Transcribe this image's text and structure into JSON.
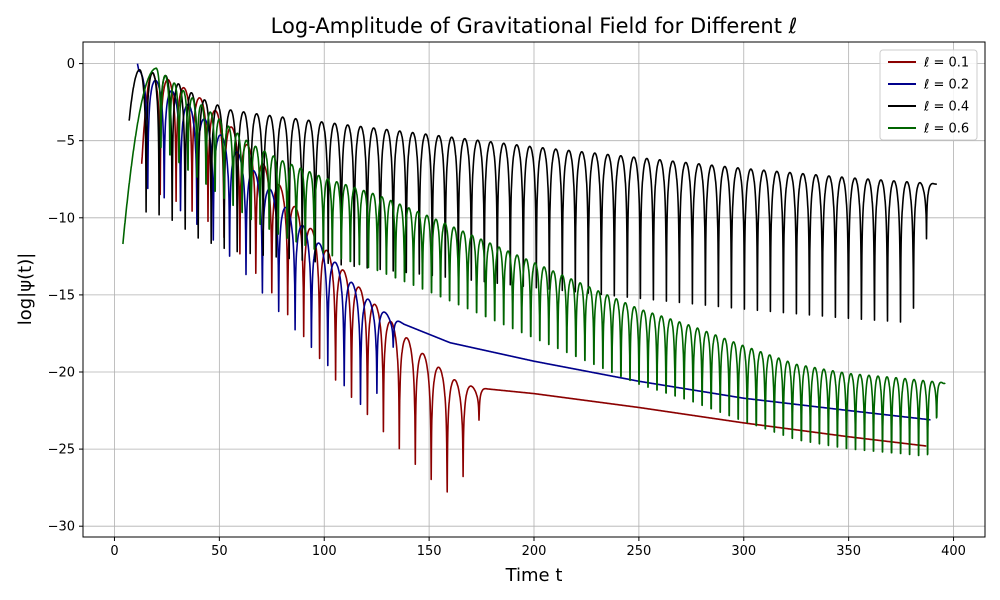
{
  "chart_data": {
    "type": "line",
    "title": "Log-Amplitude of Gravitational Field for Different ℓ",
    "xlabel": "Time t",
    "ylabel": "log|ψ(t)|",
    "xlim": [
      -15,
      415
    ],
    "ylim": [
      -30.7,
      1.4
    ],
    "x_ticks": [
      0,
      50,
      100,
      150,
      200,
      250,
      300,
      350,
      400
    ],
    "y_ticks": [
      0,
      -5,
      -10,
      -15,
      -20,
      -25,
      -30
    ],
    "grid": true,
    "legend_position": "top-right",
    "series": [
      {
        "name": "ℓ = 0.1",
        "color": "#8b0000",
        "t_start": 13,
        "t_end": 387,
        "rise_from": -6.5,
        "peak": -0.6,
        "envelope": [
          [
            18,
            -0.6
          ],
          [
            30,
            -1.3
          ],
          [
            45,
            -2.6
          ],
          [
            60,
            -4.7
          ],
          [
            75,
            -7.2
          ],
          [
            90,
            -10.0
          ],
          [
            105,
            -12.8
          ],
          [
            120,
            -15.0
          ],
          [
            135,
            -17.2
          ],
          [
            150,
            -19.2
          ],
          [
            165,
            -20.8
          ],
          [
            178,
            -21.1
          ],
          [
            200,
            -21.4
          ],
          [
            250,
            -22.3
          ],
          [
            300,
            -23.3
          ],
          [
            350,
            -24.2
          ],
          [
            387,
            -24.8
          ]
        ],
        "osc_period": 7.6,
        "osc_depth": 4.2,
        "osc_end": 178
      },
      {
        "name": "ℓ = 0.2",
        "color": "#00008b",
        "t_start": 11,
        "t_end": 389,
        "rise_from": 0.0,
        "peak": -0.5,
        "envelope": [
          [
            12,
            -0.5
          ],
          [
            25,
            -1.5
          ],
          [
            40,
            -3.2
          ],
          [
            55,
            -5.2
          ],
          [
            70,
            -7.5
          ],
          [
            85,
            -9.8
          ],
          [
            100,
            -12.0
          ],
          [
            115,
            -14.5
          ],
          [
            125,
            -15.8
          ],
          [
            138,
            -16.9
          ],
          [
            160,
            -18.1
          ],
          [
            200,
            -19.3
          ],
          [
            250,
            -20.6
          ],
          [
            300,
            -21.7
          ],
          [
            350,
            -22.5
          ],
          [
            389,
            -23.1
          ]
        ],
        "osc_period": 7.8,
        "osc_depth": 4.0,
        "osc_end": 137
      },
      {
        "name": "ℓ = 0.4",
        "color": "#000000",
        "t_start": 7,
        "t_end": 392,
        "rise_from": -3.7,
        "peak": -0.4,
        "envelope": [
          [
            12,
            -0.4
          ],
          [
            25,
            -0.8
          ],
          [
            40,
            -2.2
          ],
          [
            55,
            -3.0
          ],
          [
            70,
            -3.3
          ],
          [
            100,
            -3.8
          ],
          [
            150,
            -4.6
          ],
          [
            200,
            -5.4
          ],
          [
            250,
            -6.1
          ],
          [
            300,
            -6.8
          ],
          [
            350,
            -7.4
          ],
          [
            392,
            -7.8
          ]
        ],
        "osc_period": 6.2,
        "osc_depth": 5.0,
        "osc_end": 392
      },
      {
        "name": "ℓ = 0.6",
        "color": "#006400",
        "t_start": 4,
        "t_end": 396,
        "rise_from": -11.7,
        "peak": -0.3,
        "envelope": [
          [
            20,
            -0.3
          ],
          [
            35,
            -2.0
          ],
          [
            50,
            -3.6
          ],
          [
            65,
            -5.2
          ],
          [
            80,
            -6.3
          ],
          [
            100,
            -7.4
          ],
          [
            125,
            -8.5
          ],
          [
            150,
            -9.9
          ],
          [
            175,
            -11.4
          ],
          [
            200,
            -12.9
          ],
          [
            225,
            -14.4
          ],
          [
            250,
            -15.9
          ],
          [
            275,
            -17.0
          ],
          [
            300,
            -18.3
          ],
          [
            325,
            -19.5
          ],
          [
            350,
            -20.1
          ],
          [
            375,
            -20.4
          ],
          [
            396,
            -20.7
          ]
        ],
        "osc_period": 4.3,
        "osc_depth": 3.4,
        "osc_end": 396
      }
    ]
  }
}
